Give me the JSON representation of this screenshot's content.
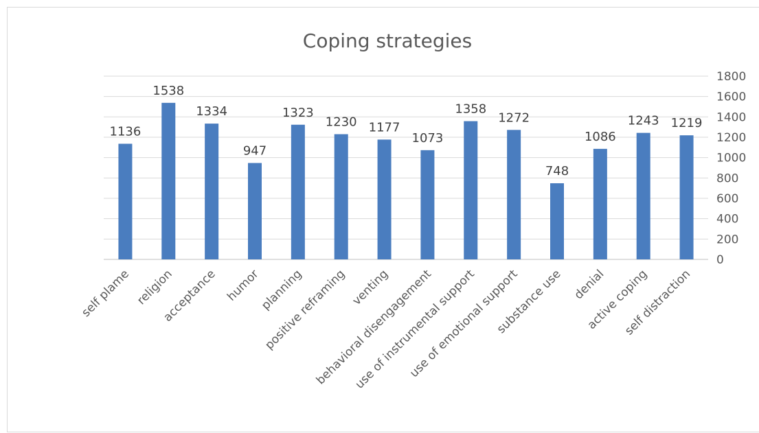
{
  "chart_data": {
    "type": "bar",
    "title": "Coping strategies",
    "categories": [
      "self plame",
      "religion",
      "acceptance",
      "humor",
      "planning",
      "positive reframing",
      "venting",
      "behavioral disengagement",
      "use of instrumental support",
      "use of emotional support",
      "substance use",
      "denial",
      "active coping",
      "self distraction"
    ],
    "values": [
      1136,
      1538,
      1334,
      947,
      1323,
      1230,
      1177,
      1073,
      1358,
      1272,
      748,
      1086,
      1243,
      1219
    ],
    "ylim": [
      0,
      1800
    ],
    "yticks": [
      "0",
      "200",
      "400",
      "600",
      "800",
      "1000",
      "1200",
      "1400",
      "1600",
      "1800"
    ],
    "yaxis_side": "right",
    "grid": true,
    "data_labels": true,
    "bar_color": "#4a7dbf",
    "xlabel": "",
    "ylabel": ""
  }
}
